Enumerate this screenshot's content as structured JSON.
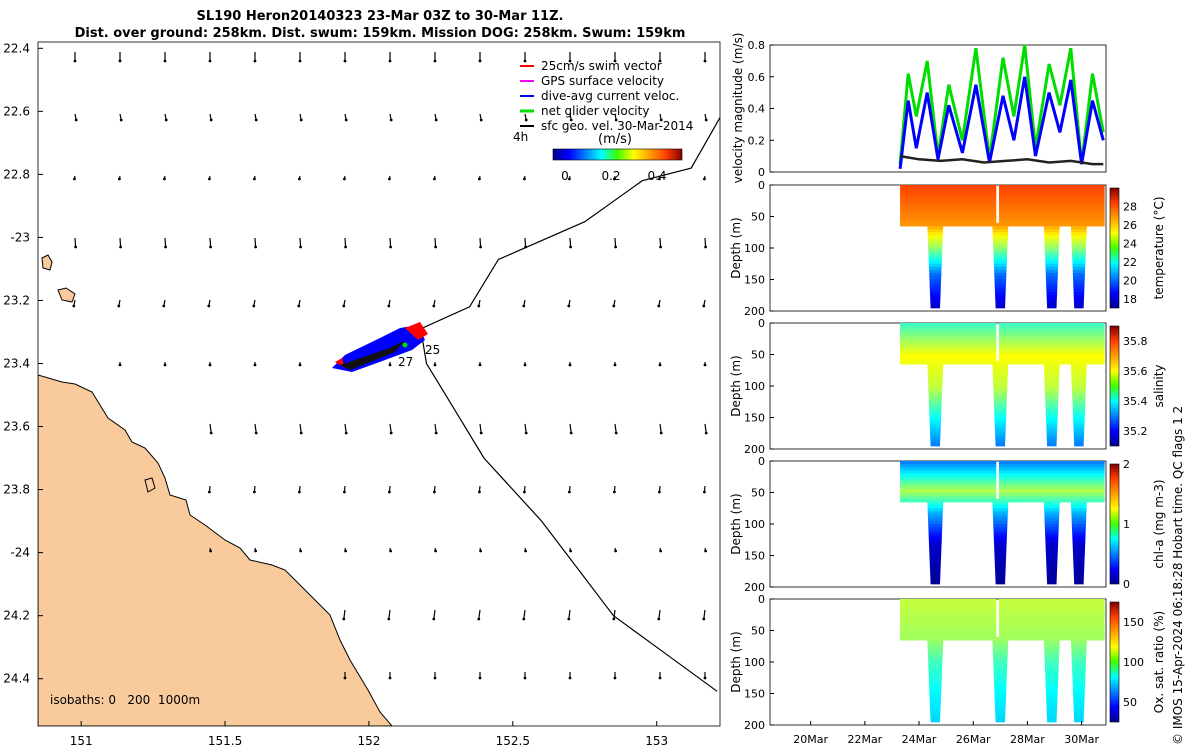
{
  "header": {
    "line1": "SL190 Heron20140323 23-Mar 03Z to 30-Mar 11Z.",
    "line2": "Dist. over ground: 258km. Dist. swum: 159km. Mission DOG: 258km. Swum: 159km"
  },
  "colors": {
    "land": "#f9cb9c",
    "swim": "#ff0000",
    "gps": "#ff00ff",
    "dive": "#0000ff",
    "net": "#00dd00",
    "geo": "#000000"
  },
  "chart_data": [
    {
      "type": "map",
      "title": "SL190 Heron20140323 23-Mar 03Z to 30-Mar 11Z.",
      "lon_ticks": [
        "151",
        "151.5",
        "152",
        "152.5",
        "153"
      ],
      "lat_ticks": [
        "22.4",
        "22.6",
        "22.8",
        "-23",
        "23.2",
        "23.4",
        "23.6",
        "23.8",
        "-24",
        "24.2",
        "24.4"
      ],
      "xlim": [
        150.85,
        153.22
      ],
      "ylim": [
        -24.55,
        -22.38
      ],
      "legend": [
        {
          "label": "25cm/s swim vector",
          "color": "#ff0000"
        },
        {
          "label": "GPS surface velocity",
          "color": "#ff00ff"
        },
        {
          "label": "dive-avg current veloc.",
          "color": "#0000ff"
        },
        {
          "label": "net glider velocity",
          "color": "#00dd00"
        },
        {
          "label": "sfc geo. vel. 30-Mar-2014",
          "color": "#000000"
        }
      ],
      "legend_extra": "4h",
      "colorbar_label": "(m/s)",
      "colorbar_ticks": [
        "0",
        "0.2",
        "0.4"
      ],
      "day_labels": [
        "25",
        "27"
      ],
      "isobath_text": "isobaths: 0   200  1000m",
      "track": [
        [
          153.22,
          -22.62
        ],
        [
          153.12,
          -22.78
        ],
        [
          152.95,
          -22.82
        ],
        [
          152.75,
          -22.95
        ],
        [
          152.45,
          -23.07
        ],
        [
          152.35,
          -23.22
        ],
        [
          152.18,
          -23.29
        ],
        [
          152.2,
          -23.4
        ],
        [
          152.3,
          -23.55
        ],
        [
          152.4,
          -23.7
        ],
        [
          152.6,
          -23.9
        ],
        [
          152.85,
          -24.2
        ],
        [
          153.0,
          -24.3
        ],
        [
          153.21,
          -24.44
        ]
      ]
    },
    {
      "type": "line",
      "ylabel": "velocity magnitude (m/s)",
      "ylim": [
        0,
        0.8
      ],
      "yticks": [
        "0",
        "0.2",
        "0.4",
        "0.6",
        "0.8"
      ],
      "xrange_days": [
        18.5,
        30.9
      ],
      "series": [
        {
          "name": "net glider velocity",
          "color": "#00dd00",
          "x": [
            23.3,
            23.6,
            23.9,
            24.3,
            24.7,
            25.1,
            25.6,
            26.1,
            26.6,
            27.1,
            27.5,
            27.9,
            28.3,
            28.8,
            29.2,
            29.6,
            30.0,
            30.4,
            30.8
          ],
          "values": [
            0.05,
            0.62,
            0.35,
            0.7,
            0.1,
            0.55,
            0.2,
            0.78,
            0.08,
            0.72,
            0.35,
            0.8,
            0.15,
            0.68,
            0.42,
            0.78,
            0.05,
            0.62,
            0.25
          ]
        },
        {
          "name": "dive-avg current veloc.",
          "color": "#0000ff",
          "x": [
            23.3,
            23.6,
            23.9,
            24.3,
            24.7,
            25.1,
            25.6,
            26.1,
            26.6,
            27.1,
            27.5,
            27.9,
            28.3,
            28.8,
            29.2,
            29.6,
            30.0,
            30.4,
            30.8
          ],
          "values": [
            0.02,
            0.45,
            0.15,
            0.5,
            0.08,
            0.42,
            0.12,
            0.55,
            0.06,
            0.48,
            0.2,
            0.6,
            0.1,
            0.5,
            0.25,
            0.58,
            0.05,
            0.45,
            0.2
          ]
        },
        {
          "name": "sfc geo. vel.",
          "color": "#222222",
          "x": [
            23.3,
            24.0,
            24.8,
            25.6,
            26.4,
            27.2,
            28.0,
            28.8,
            29.6,
            30.4,
            30.8
          ],
          "values": [
            0.1,
            0.08,
            0.07,
            0.08,
            0.06,
            0.07,
            0.08,
            0.06,
            0.07,
            0.05,
            0.05
          ]
        }
      ]
    },
    {
      "type": "heatmap",
      "ylabel": "Depth (m)",
      "clabel": "temperature (°C)",
      "ylim": [
        200,
        0
      ],
      "yticks": [
        "0",
        "50",
        "100",
        "150",
        "200"
      ],
      "clim": [
        17,
        30
      ],
      "cticks": [
        "18",
        "20",
        "22",
        "24",
        "26",
        "28"
      ],
      "days": [
        23.2,
        24.6,
        27.0,
        28.9,
        29.9
      ],
      "profile": [
        {
          "depth": 0,
          "value": 27.5
        },
        {
          "depth": 60,
          "value": 26.5
        },
        {
          "depth": 100,
          "value": 23.5
        },
        {
          "depth": 140,
          "value": 20
        },
        {
          "depth": 190,
          "value": 18
        }
      ]
    },
    {
      "type": "heatmap",
      "ylabel": "Depth (m)",
      "clabel": "salinity",
      "ylim": [
        200,
        0
      ],
      "yticks": [
        "0",
        "50",
        "100",
        "150",
        "200"
      ],
      "clim": [
        35.1,
        35.9
      ],
      "cticks": [
        "35.2",
        "35.4",
        "35.6",
        "35.8"
      ],
      "days": [
        23.2,
        24.6,
        27.0,
        28.9,
        29.9
      ],
      "profile": [
        {
          "depth": 0,
          "value": 35.45
        },
        {
          "depth": 50,
          "value": 35.6
        },
        {
          "depth": 100,
          "value": 35.55
        },
        {
          "depth": 150,
          "value": 35.4
        },
        {
          "depth": 190,
          "value": 35.3
        }
      ]
    },
    {
      "type": "heatmap",
      "ylabel": "Depth (m)",
      "clabel": "chl-a (mg m-3)",
      "ylim": [
        200,
        0
      ],
      "yticks": [
        "0",
        "50",
        "100",
        "150",
        "200"
      ],
      "clim": [
        0,
        2
      ],
      "cticks": [
        "0",
        "1",
        "2"
      ],
      "days": [
        23.2,
        24.6,
        27.0,
        28.9,
        29.9
      ],
      "profile": [
        {
          "depth": 0,
          "value": 0.5
        },
        {
          "depth": 45,
          "value": 1.1
        },
        {
          "depth": 80,
          "value": 0.6
        },
        {
          "depth": 130,
          "value": 0.15
        },
        {
          "depth": 190,
          "value": 0.05
        }
      ]
    },
    {
      "type": "heatmap",
      "ylabel": "Depth (m)",
      "clabel": "Ox. sat. ratio (%)",
      "ylim": [
        200,
        0
      ],
      "yticks": [
        "0",
        "50",
        "100",
        "150",
        "200"
      ],
      "clim": [
        25,
        175
      ],
      "cticks": [
        "50",
        "100",
        "150"
      ],
      "days": [
        23.2,
        24.6,
        27.0,
        28.9,
        29.9
      ],
      "xticks": [
        "20Mar",
        "22Mar",
        "24Mar",
        "26Mar",
        "28Mar",
        "30Mar"
      ],
      "xtick_days": [
        20,
        22,
        24,
        26,
        28,
        30
      ],
      "profile": [
        {
          "depth": 0,
          "value": 110
        },
        {
          "depth": 60,
          "value": 105
        },
        {
          "depth": 100,
          "value": 90
        },
        {
          "depth": 150,
          "value": 80
        },
        {
          "depth": 195,
          "value": 75
        }
      ]
    }
  ],
  "credit": "© IMOS 15-Apr-2024 06:18:28 Hobart time. QC flags 1  2"
}
